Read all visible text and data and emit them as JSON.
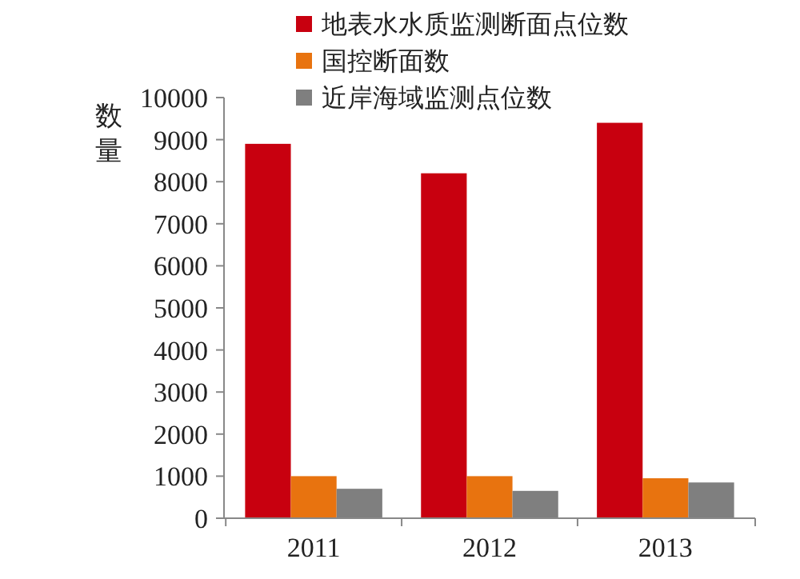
{
  "chart_data": {
    "type": "bar",
    "ylabel": "数量",
    "categories": [
      "2011",
      "2012",
      "2013"
    ],
    "series": [
      {
        "name": "地表水水质监测断面点位数",
        "color": "#c8000f",
        "values": [
          8900,
          8200,
          9400
        ]
      },
      {
        "name": "国控断面数",
        "color": "#e8730f",
        "values": [
          1000,
          1000,
          950
        ]
      },
      {
        "name": "近岸海域监测点位数",
        "color": "#7f7f7f",
        "values": [
          700,
          650,
          850
        ]
      }
    ],
    "ylim": [
      0,
      10000
    ],
    "yticks": [
      0,
      1000,
      2000,
      3000,
      4000,
      5000,
      6000,
      7000,
      8000,
      9000,
      10000
    ],
    "grid": false,
    "legend": "top"
  }
}
